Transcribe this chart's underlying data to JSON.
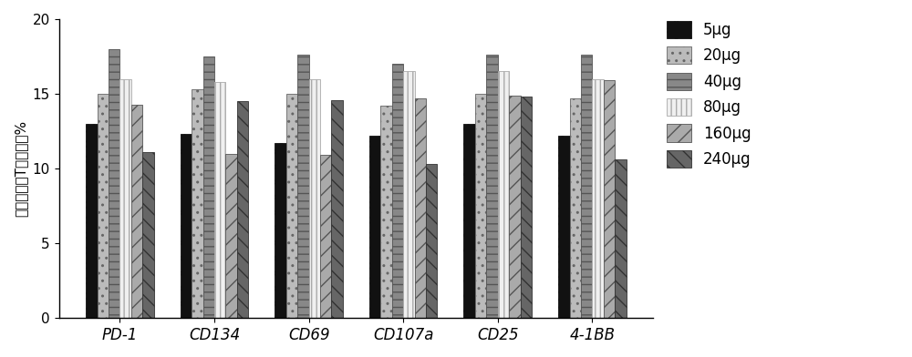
{
  "categories": [
    "PD-1",
    "CD134",
    "CD69",
    "CD107a",
    "CD25",
    "4-1BB"
  ],
  "series": [
    {
      "label": "5μg",
      "values": [
        13.0,
        12.3,
        11.7,
        12.2,
        13.0,
        12.2
      ],
      "color": "#111111",
      "edgecolor": "#111111",
      "hatch": "xx"
    },
    {
      "label": "20μg",
      "values": [
        15.0,
        15.3,
        15.0,
        14.2,
        15.0,
        14.7
      ],
      "color": "#aaaaaa",
      "edgecolor": "#555555",
      "hatch": ".."
    },
    {
      "label": "40μg",
      "values": [
        18.0,
        17.5,
        17.6,
        17.0,
        17.6,
        17.6
      ],
      "color": "#999999",
      "edgecolor": "#555555",
      "hatch": "=="
    },
    {
      "label": "80μg",
      "values": [
        16.0,
        15.8,
        16.0,
        16.5,
        16.5,
        16.0
      ],
      "color": "#eeeeee",
      "edgecolor": "#888888",
      "hatch": "|||"
    },
    {
      "label": "160μg",
      "values": [
        14.3,
        11.0,
        10.9,
        14.7,
        14.9,
        15.9
      ],
      "color": "#bbbbbb",
      "edgecolor": "#555555",
      "hatch": "///"
    },
    {
      "label": "240μg",
      "values": [
        11.1,
        14.5,
        14.6,
        10.3,
        14.8,
        10.6
      ],
      "color": "#555555",
      "edgecolor": "#333333",
      "hatch": "///"
    }
  ],
  "ylim": [
    0,
    20
  ],
  "yticks": [
    0,
    5,
    10,
    15,
    20
  ],
  "ylabel": "抗原特异性T细胞占比%",
  "bar_width": 0.12,
  "background_color": "#ffffff"
}
